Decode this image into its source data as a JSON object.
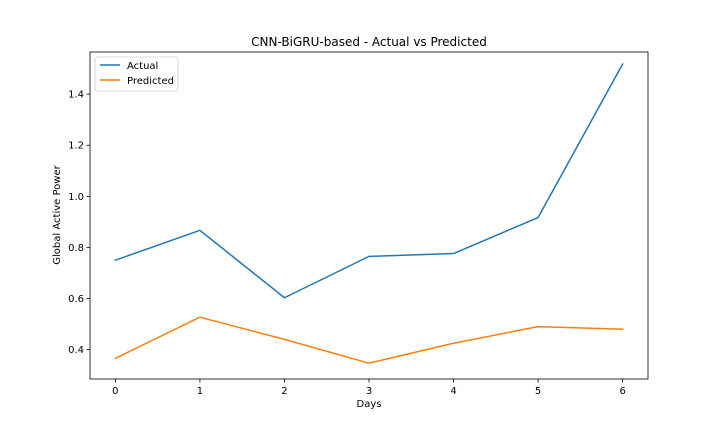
{
  "chart_data": {
    "type": "line",
    "title": "CNN-BiGRU-based - Actual vs Predicted",
    "xlabel": "Days",
    "ylabel": "Global Active Power",
    "x": [
      0,
      1,
      2,
      3,
      4,
      5,
      6
    ],
    "xticks": [
      "0",
      "1",
      "2",
      "3",
      "4",
      "5",
      "6"
    ],
    "yticks": [
      "0.4",
      "0.6",
      "0.8",
      "1.0",
      "1.2",
      "1.4"
    ],
    "xlim": [
      -0.3,
      6.3
    ],
    "ylim": [
      0.285,
      1.565
    ],
    "grid": false,
    "legend_position": "upper-left",
    "series": [
      {
        "name": "Actual",
        "color": "#1f77b4",
        "values": [
          0.75,
          0.867,
          0.603,
          0.765,
          0.776,
          0.917,
          1.518
        ]
      },
      {
        "name": "Predicted",
        "color": "#ff7f0e",
        "values": [
          0.366,
          0.527,
          0.44,
          0.347,
          0.425,
          0.49,
          0.48
        ]
      }
    ]
  }
}
